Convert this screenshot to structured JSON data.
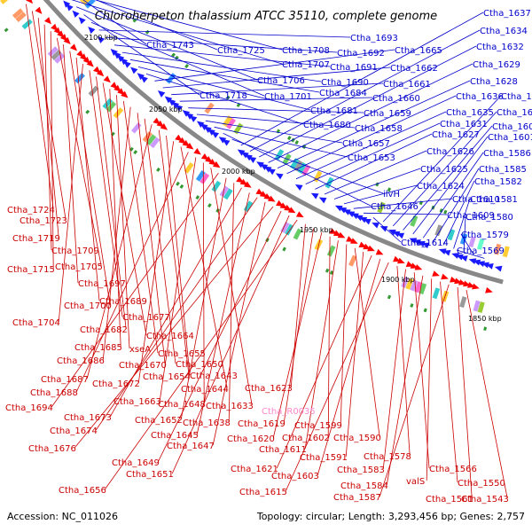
{
  "title": "Chloroherpeton thalassium ATCC 35110, complete genome",
  "footer": {
    "accession": "Accession: NC_011026",
    "summary": "Topology: circular; Length: 3,293,456 bp; Genes: 2,757"
  },
  "colors": {
    "forward_label": "#0000cc",
    "reverse_label": "#cc0000",
    "highlight_label": "#ff88cc",
    "backbone": "#888888",
    "forward_feature": "#1a1aff",
    "reverse_feature": "#ff0000"
  },
  "ticks": [
    "2100 kbp",
    "2050 kbp",
    "2000 kbp",
    "1950 kbp",
    "1900 kbp",
    "1850 kbp"
  ],
  "forward_labels": [
    "Ctha_1743",
    "Ctha_1725",
    "Ctha_1708",
    "Ctha_1707",
    "Ctha_1706",
    "Ctha_1718",
    "Ctha_1701",
    "Ctha_1693",
    "Ctha_1692",
    "Ctha_1691",
    "Ctha_1690",
    "Ctha_1684",
    "Ctha_1681",
    "Ctha_1680",
    "Ctha_1665",
    "Ctha_1662",
    "Ctha_1661",
    "Ctha_1660",
    "Ctha_1659",
    "Ctha_1658",
    "Ctha_1657",
    "Ctha_1653",
    "Ctha_1646",
    "ilvH",
    "Ctha_1637",
    "Ctha_1634",
    "Ctha_1632",
    "Ctha_1629",
    "Ctha_1628",
    "Ctha_1636",
    "Ctha_1635",
    "Ctha_1631",
    "Ctha_1627",
    "Ctha_1626",
    "Ctha_1625",
    "Ctha_1624",
    "Ctha_1610",
    "Ctha_1609",
    "Ctha_1614",
    "Ctha_1613",
    "Ctha_1612",
    "Ctha_1604",
    "Ctha_1601",
    "Ctha_1586",
    "Ctha_1585",
    "Ctha_1582",
    "Ctha_1581",
    "Ctha_1580",
    "Ctha_1579",
    "Ctha_1569"
  ],
  "reverse_labels": [
    "Ctha_1724",
    "Ctha_1723",
    "Ctha_1719",
    "Ctha_1709",
    "Ctha_1715",
    "Ctha_1705",
    "Ctha_1697",
    "Ctha_1700",
    "Ctha_1689",
    "Ctha_1704",
    "Ctha_1677",
    "Ctha_1682",
    "Ctha_1664",
    "Ctha_1685",
    "xseA",
    "Ctha_1655",
    "Ctha_1686",
    "Ctha_1670",
    "Ctha_1650",
    "Ctha_1687",
    "Ctha_1654",
    "Ctha_1643",
    "Ctha_1672",
    "Ctha_1644",
    "Ctha_1688",
    "Ctha_1663",
    "Ctha_1648",
    "Ctha_1633",
    "Ctha_1694",
    "Ctha_1652",
    "Ctha_1638",
    "Ctha_1673",
    "Ctha_1645",
    "Ctha_1674",
    "Ctha_1647",
    "Ctha_1676",
    "Ctha_1649",
    "Ctha_1651",
    "Ctha_1656",
    "Ctha_1623",
    "Ctha_1619",
    "Ctha_1620",
    "Ctha_1602",
    "Ctha_1611",
    "Ctha_1599",
    "Ctha_1590",
    "Ctha_1591",
    "Ctha_1621",
    "Ctha_1603",
    "Ctha_1615",
    "Ctha_1578",
    "Ctha_1583",
    "Ctha_1566",
    "Ctha_1584",
    "valS",
    "Ctha_1550",
    "Ctha_1587",
    "Ctha_1561",
    "Ctha_1543"
  ],
  "highlight_labels": [
    "Ctha_R0035"
  ]
}
